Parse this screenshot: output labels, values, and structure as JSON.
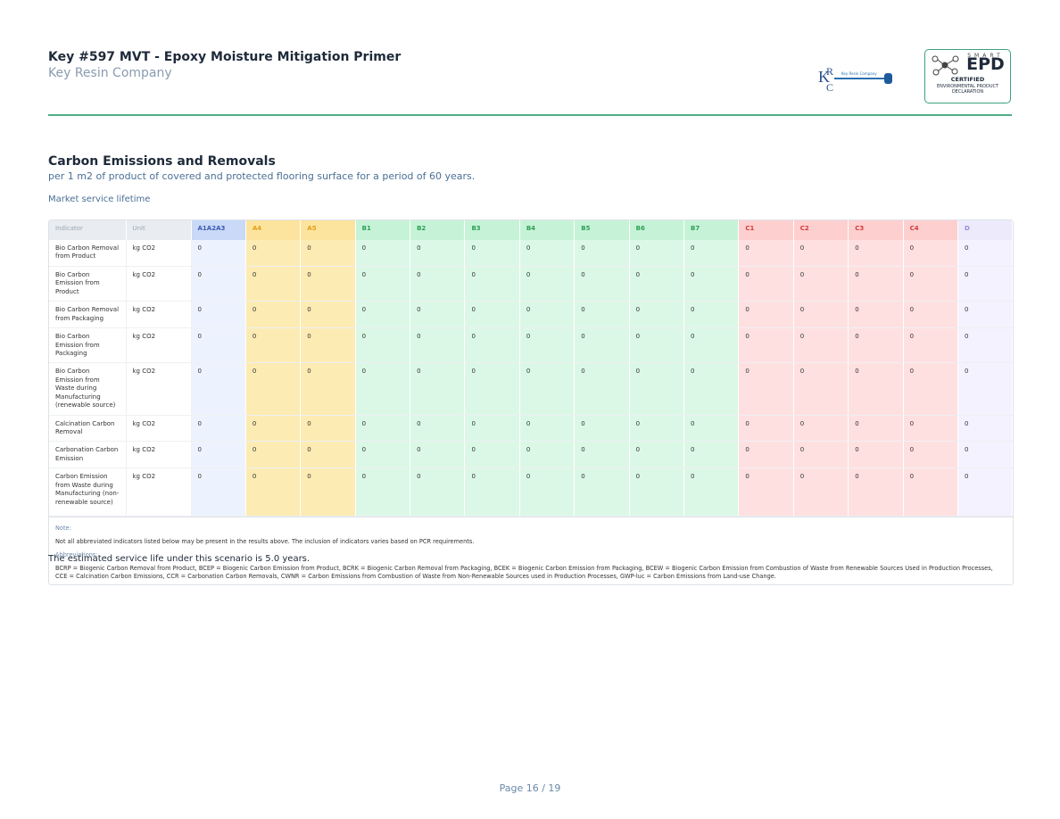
{
  "header": {
    "title": "Key #597 MVT - Epoxy Moisture Mitigation Primer",
    "company": "Key Resin Company",
    "logo_text": "Key Resin Company",
    "badge": {
      "top": "SMART",
      "mark": "EPD",
      "status": "CERTIFIED",
      "caption": "ENVIRONMENTAL PRODUCT DECLARATION"
    }
  },
  "section": {
    "title": "Carbon Emissions and Removals",
    "subtitle": "per 1 m2 of product of covered and protected flooring surface for a period of 60 years.",
    "scenario": "Market service lifetime"
  },
  "table": {
    "columns": [
      "Indicator",
      "Unit",
      "A1A2A3",
      "A4",
      "A5",
      "B1",
      "B2",
      "B3",
      "B4",
      "B5",
      "B6",
      "B7",
      "C1",
      "C2",
      "C3",
      "C4",
      "D"
    ],
    "rows": [
      [
        "Bio Carbon Removal from Product",
        "kg CO2",
        0,
        0,
        0,
        0,
        0,
        0,
        0,
        0,
        0,
        0,
        0,
        0,
        0,
        0,
        0
      ],
      [
        "Bio Carbon Emission from Product",
        "kg CO2",
        0,
        0,
        0,
        0,
        0,
        0,
        0,
        0,
        0,
        0,
        0,
        0,
        0,
        0,
        0
      ],
      [
        "Bio Carbon Removal from Packaging",
        "kg CO2",
        0,
        0,
        0,
        0,
        0,
        0,
        0,
        0,
        0,
        0,
        0,
        0,
        0,
        0,
        0
      ],
      [
        "Bio Carbon Emission from Packaging",
        "kg CO2",
        0,
        0,
        0,
        0,
        0,
        0,
        0,
        0,
        0,
        0,
        0,
        0,
        0,
        0,
        0
      ],
      [
        "Bio Carbon Emission from Waste during Manufacturing (renewable source)",
        "kg CO2",
        0,
        0,
        0,
        0,
        0,
        0,
        0,
        0,
        0,
        0,
        0,
        0,
        0,
        0,
        0
      ],
      [
        "Calcination Carbon Removal",
        "kg CO2",
        0,
        0,
        0,
        0,
        0,
        0,
        0,
        0,
        0,
        0,
        0,
        0,
        0,
        0,
        0
      ],
      [
        "Carbonation Carbon Emission",
        "kg CO2",
        0,
        0,
        0,
        0,
        0,
        0,
        0,
        0,
        0,
        0,
        0,
        0,
        0,
        0,
        0
      ],
      [
        "Carbon Emission from Waste during Manufacturing (non-renewable source)",
        "kg CO2",
        0,
        0,
        0,
        0,
        0,
        0,
        0,
        0,
        0,
        0,
        0,
        0,
        0,
        0,
        0
      ]
    ],
    "note_label": "Note:",
    "note": "Not all abbreviated indicators listed below may be present in the results above. The inclusion of indicators varies based on PCR requirements.",
    "abbreviations_label": "Abbreviations:",
    "abbreviations": "BCRP = Biogenic Carbon Removal from Product, BCEP = Biogenic Carbon Emission from Product, BCRK = Biogenic Carbon Removal from Packaging, BCEK = Biogenic Carbon Emission from Packaging, BCEW = Biogenic Carbon Emission from Combustion of Waste from Renewable Sources Used in Production Processes, CCE = Calcination Carbon Emissions, CCR = Carbonation Carbon Removals, CWNR = Carbon Emissions from Combustion of Waste from Non-Renewable Sources used in Production Processes, GWP-luc = Carbon Emissions from Land-use Change."
  },
  "service_life": "The estimated service life under this scenario is 5.0 years.",
  "footer": {
    "page": "Page 16 / 19"
  }
}
